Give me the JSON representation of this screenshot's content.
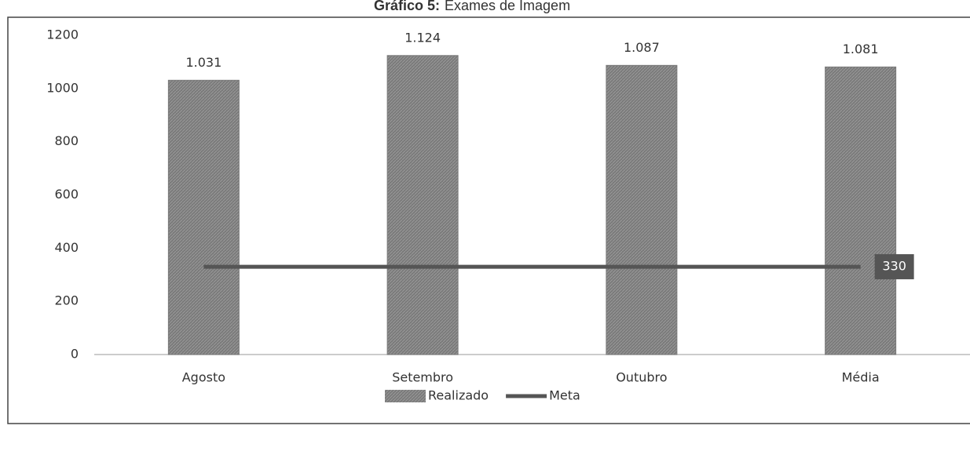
{
  "chart_data": {
    "type": "bar",
    "title_prefix": "Gráfico 5:",
    "title": "Exames de Imagem",
    "categories": [
      "Agosto",
      "Setembro",
      "Outubro",
      "Média"
    ],
    "series": [
      {
        "name": "Realizado",
        "type": "bar",
        "color": "#7a7a7a",
        "values": [
          1031,
          1124,
          1087,
          1081
        ],
        "value_labels": [
          "1.031",
          "1.124",
          "1.087",
          "1.081"
        ]
      },
      {
        "name": "Meta",
        "type": "line",
        "color": "#555555",
        "values": [
          330,
          330,
          330,
          330
        ]
      }
    ],
    "ylim": [
      0,
      1200
    ],
    "yticks": [
      0,
      200,
      400,
      600,
      800,
      1000,
      1200
    ],
    "legend": "bottom"
  }
}
